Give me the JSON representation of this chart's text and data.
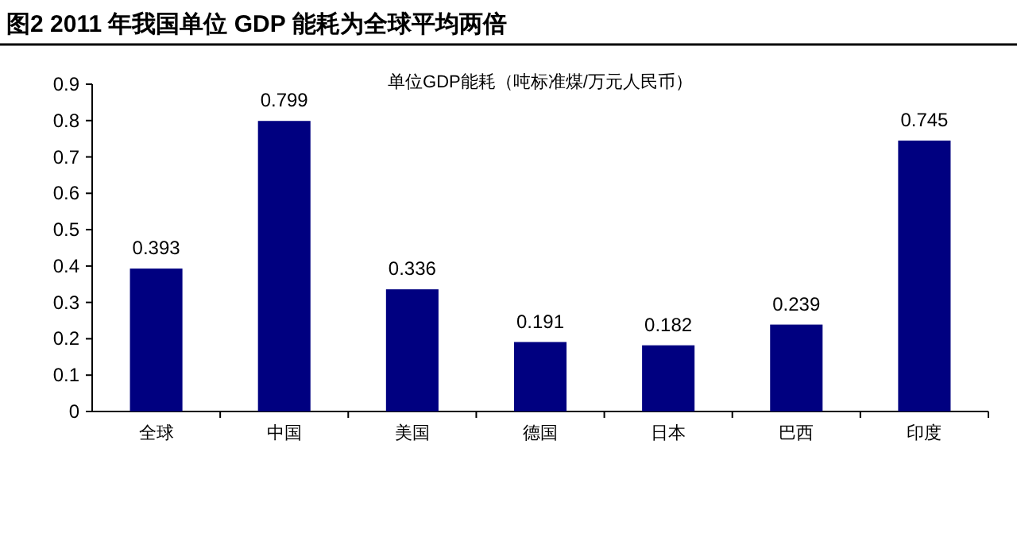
{
  "chart_data": {
    "type": "bar",
    "title": "图2  2011 年我国单位 GDP 能耗为全球平均两倍",
    "subtitle": "单位GDP能耗（吨标准煤/万元人民币）",
    "categories": [
      "全球",
      "中国",
      "美国",
      "德国",
      "日本",
      "巴西",
      "印度"
    ],
    "values": [
      0.393,
      0.799,
      0.336,
      0.191,
      0.182,
      0.239,
      0.745
    ],
    "color": "#000080",
    "ylim": [
      0,
      0.9
    ],
    "yticks": [
      0,
      0.1,
      0.2,
      0.3,
      0.4,
      0.5,
      0.6,
      0.7,
      0.8,
      0.9
    ],
    "grid": false,
    "data_labels": true
  }
}
